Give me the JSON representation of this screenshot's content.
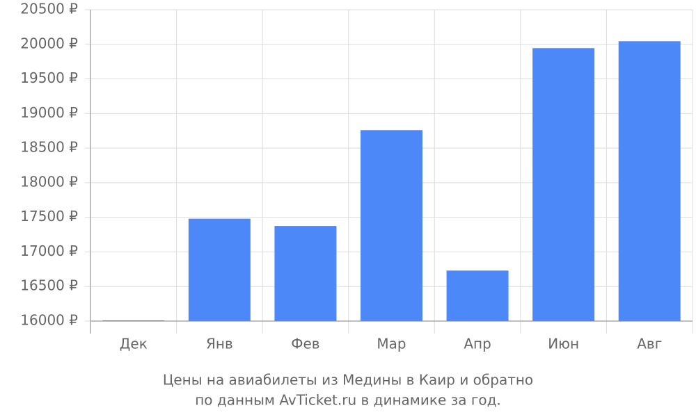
{
  "chart_data": {
    "type": "bar",
    "title": [
      "Цены на авиабилеты из Медины в Каир и обратно",
      "по данным AvTicket.ru в динамике за год."
    ],
    "categories": [
      "Дек",
      "Янв",
      "Фев",
      "Мар",
      "Апр",
      "Июн",
      "Авг"
    ],
    "values": [
      16010,
      17480,
      17375,
      18760,
      16730,
      19945,
      20045
    ],
    "color": "#4d88f8",
    "ylim": [
      16000,
      20500
    ],
    "yticks": [
      {
        "value": 16000,
        "label": "16000 ₽"
      },
      {
        "value": 16500,
        "label": "16500 ₽"
      },
      {
        "value": 17000,
        "label": "17000 ₽"
      },
      {
        "value": 17500,
        "label": "17500 ₽"
      },
      {
        "value": 18000,
        "label": "18000 ₽"
      },
      {
        "value": 18500,
        "label": "18500 ₽"
      },
      {
        "value": 19000,
        "label": "19000 ₽"
      },
      {
        "value": 19500,
        "label": "19500 ₽"
      },
      {
        "value": 20000,
        "label": "20000 ₽"
      },
      {
        "value": 20500,
        "label": "20500 ₽"
      }
    ],
    "grid": true
  }
}
